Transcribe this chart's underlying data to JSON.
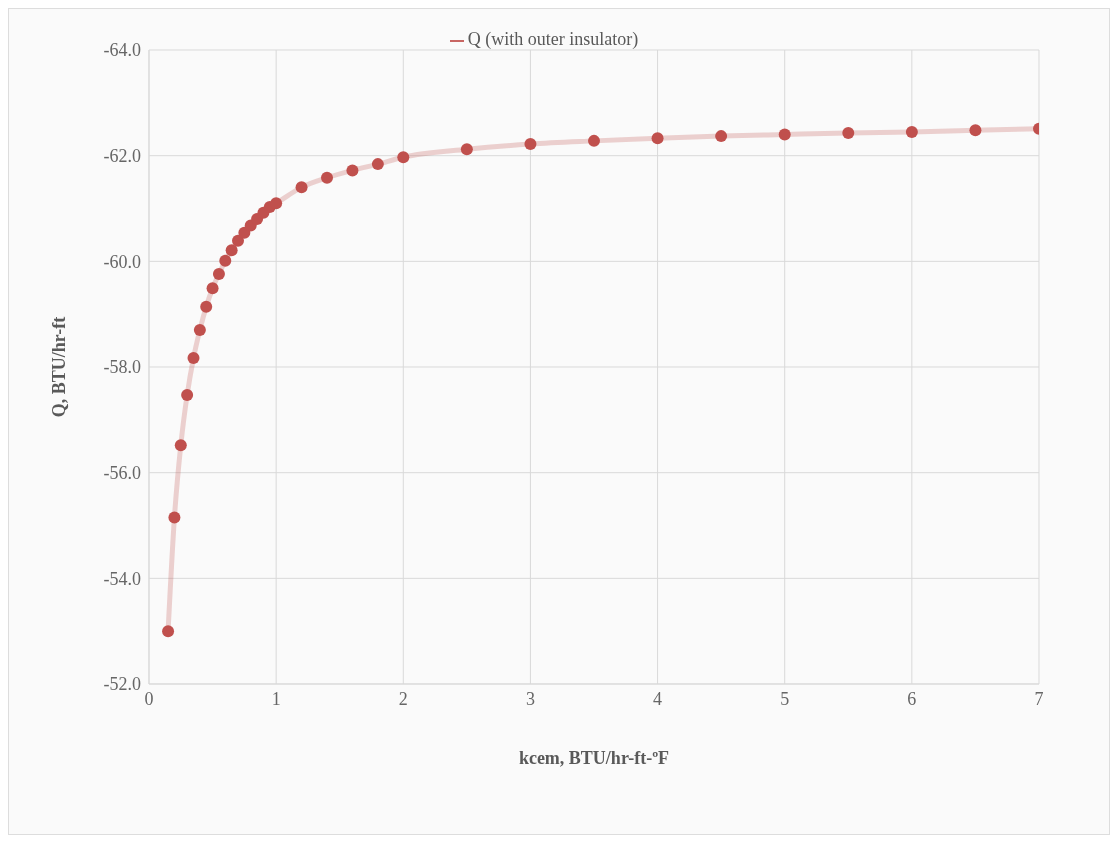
{
  "chart_data": {
    "type": "line",
    "xlabel": "kcem, BTU/hr-ft-ºF",
    "ylabel": "Q, BTU/hr-ft",
    "x": [
      0.15,
      0.2,
      0.25,
      0.3,
      0.35,
      0.4,
      0.45,
      0.5,
      0.55,
      0.6,
      0.65,
      0.7,
      0.75,
      0.8,
      0.85,
      0.9,
      0.95,
      1,
      1.2,
      1.4,
      1.6,
      1.8,
      2,
      2.5,
      3,
      3.5,
      4,
      4.5,
      5,
      5.5,
      6,
      6.5,
      7
    ],
    "series": [
      {
        "name": "Q (with outer insulator)",
        "color": "#c0504d",
        "values": [
          -53.0,
          -55.15,
          -56.52,
          -57.47,
          -58.17,
          -58.7,
          -59.14,
          -59.49,
          -59.76,
          -60.01,
          -60.21,
          -60.39,
          -60.54,
          -60.68,
          -60.8,
          -60.92,
          -61.03,
          -61.1,
          -61.4,
          -61.58,
          -61.72,
          -61.84,
          -61.97,
          -62.12,
          -62.22,
          -62.28,
          -62.33,
          -62.37,
          -62.4,
          -62.43,
          -62.45,
          -62.48,
          -62.51
        ]
      }
    ],
    "xlim": [
      0,
      7
    ],
    "xticks": [
      0,
      1,
      2,
      3,
      4,
      5,
      6,
      7
    ],
    "ylim": [
      -52,
      -64
    ],
    "yticks": [
      {
        "value": -64,
        "label": "-64.0"
      },
      {
        "value": -62,
        "label": "-62.0"
      },
      {
        "value": -60,
        "label": "-60.0"
      },
      {
        "value": -58,
        "label": "-58.0"
      },
      {
        "value": -56,
        "label": "-56.0"
      },
      {
        "value": -54,
        "label": "-54.0"
      },
      {
        "value": -52,
        "label": "-52.0"
      }
    ],
    "grid": true,
    "legend": "top",
    "marker": "circle",
    "line_style": "solid"
  }
}
